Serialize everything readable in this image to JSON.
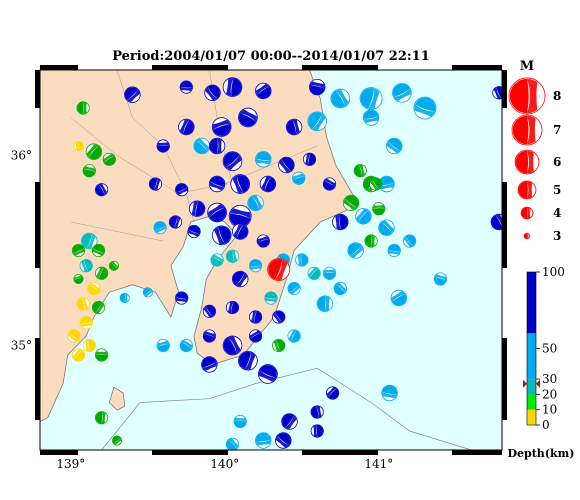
{
  "title": "Period:2004/01/07 00:00--2014/01/07 22:11",
  "map": {
    "lon_range": [
      138.8,
      141.8
    ],
    "lat_range": [
      34.45,
      36.45
    ],
    "x_ticks": [
      {
        "value": 139,
        "label": "139°"
      },
      {
        "value": 140,
        "label": "140°"
      },
      {
        "value": 141,
        "label": "141°"
      }
    ],
    "y_ticks": [
      {
        "value": 36,
        "label": "36°"
      },
      {
        "value": 35,
        "label": "35°"
      }
    ],
    "colors": {
      "land": "#fbdcbe",
      "sea": "#e0ffff",
      "coast": "#7a7a7a"
    }
  },
  "magnitude_legend": {
    "title": "M",
    "items": [
      {
        "label": "8",
        "m": 8
      },
      {
        "label": "7",
        "m": 7
      },
      {
        "label": "6",
        "m": 6
      },
      {
        "label": "5",
        "m": 5
      },
      {
        "label": "4",
        "m": 4
      },
      {
        "label": "3",
        "m": 3
      }
    ],
    "color": "#ff0000"
  },
  "depth_scale": {
    "title": "Depth(km)",
    "range": [
      0,
      100
    ],
    "ticks": [
      {
        "label": "100",
        "v": 100
      },
      {
        "label": "50",
        "v": 50
      },
      {
        "label": "30",
        "v": 30
      },
      {
        "label": "20",
        "v": 20
      },
      {
        "label": "10",
        "v": 10
      },
      {
        "label": "0",
        "v": 0
      }
    ],
    "bands": [
      {
        "from": 0,
        "to": 10,
        "color": "#ffd700"
      },
      {
        "from": 10,
        "to": 20,
        "color": "#00ee00"
      },
      {
        "from": 20,
        "to": 30,
        "color": "#00bbbb"
      },
      {
        "from": 30,
        "to": 60,
        "color": "#00aaee"
      },
      {
        "from": 60,
        "to": 100,
        "color": "#0000cc"
      }
    ],
    "marker_depth": 27,
    "marker_color": "#cc0000"
  },
  "highlight_event": {
    "lon": 140.35,
    "lat": 35.4,
    "m": 5.5,
    "color": "#ff0000"
  },
  "events": [
    {
      "lon": 139.08,
      "lat": 36.25,
      "m": 4.0,
      "color": "#00aa00"
    },
    {
      "lon": 139.4,
      "lat": 36.32,
      "m": 4.5,
      "color": "#0000cc"
    },
    {
      "lon": 139.75,
      "lat": 36.36,
      "m": 4.0,
      "color": "#0000cc"
    },
    {
      "lon": 139.92,
      "lat": 36.33,
      "m": 4.5,
      "color": "#0000cc"
    },
    {
      "lon": 140.05,
      "lat": 36.36,
      "m": 5.0,
      "color": "#0000cc"
    },
    {
      "lon": 140.25,
      "lat": 36.34,
      "m": 4.5,
      "color": "#0000cc"
    },
    {
      "lon": 140.6,
      "lat": 36.36,
      "m": 4.5,
      "color": "#0000cc"
    },
    {
      "lon": 140.75,
      "lat": 36.3,
      "m": 5.0,
      "color": "#00aaee"
    },
    {
      "lon": 140.95,
      "lat": 36.3,
      "m": 5.5,
      "color": "#00aaee"
    },
    {
      "lon": 141.15,
      "lat": 36.33,
      "m": 5.0,
      "color": "#00aaee"
    },
    {
      "lon": 141.3,
      "lat": 36.25,
      "m": 5.5,
      "color": "#00aaee"
    },
    {
      "lon": 141.78,
      "lat": 36.33,
      "m": 4.0,
      "color": "#0000cc"
    },
    {
      "lon": 139.75,
      "lat": 36.15,
      "m": 4.5,
      "color": "#0000cc"
    },
    {
      "lon": 139.98,
      "lat": 36.15,
      "m": 5.0,
      "color": "#0000cc"
    },
    {
      "lon": 140.15,
      "lat": 36.2,
      "m": 5.0,
      "color": "#0000cc"
    },
    {
      "lon": 140.45,
      "lat": 36.15,
      "m": 4.5,
      "color": "#0000cc"
    },
    {
      "lon": 140.6,
      "lat": 36.18,
      "m": 5.0,
      "color": "#00aaee"
    },
    {
      "lon": 140.95,
      "lat": 36.2,
      "m": 4.5,
      "color": "#00aaee"
    },
    {
      "lon": 141.1,
      "lat": 36.05,
      "m": 4.5,
      "color": "#00aaee"
    },
    {
      "lon": 139.05,
      "lat": 36.05,
      "m": 3.5,
      "color": "#ffd700"
    },
    {
      "lon": 139.15,
      "lat": 36.02,
      "m": 4.5,
      "color": "#00aa00"
    },
    {
      "lon": 139.6,
      "lat": 36.05,
      "m": 4.0,
      "color": "#0000cc"
    },
    {
      "lon": 139.85,
      "lat": 36.05,
      "m": 4.5,
      "color": "#00aaee"
    },
    {
      "lon": 139.95,
      "lat": 36.05,
      "m": 4.5,
      "color": "#0000cc"
    },
    {
      "lon": 140.05,
      "lat": 35.97,
      "m": 5.0,
      "color": "#0000cc"
    },
    {
      "lon": 140.25,
      "lat": 35.98,
      "m": 4.5,
      "color": "#00aaee"
    },
    {
      "lon": 140.4,
      "lat": 35.95,
      "m": 4.5,
      "color": "#0000cc"
    },
    {
      "lon": 140.55,
      "lat": 35.98,
      "m": 4.0,
      "color": "#0000cc"
    },
    {
      "lon": 139.25,
      "lat": 35.98,
      "m": 4.0,
      "color": "#00aa00"
    },
    {
      "lon": 139.12,
      "lat": 35.92,
      "m": 4.0,
      "color": "#00aa00"
    },
    {
      "lon": 139.2,
      "lat": 35.82,
      "m": 4.0,
      "color": "#0000cc"
    },
    {
      "lon": 139.55,
      "lat": 35.85,
      "m": 4.0,
      "color": "#0000cc"
    },
    {
      "lon": 139.72,
      "lat": 35.82,
      "m": 4.0,
      "color": "#0000cc"
    },
    {
      "lon": 139.95,
      "lat": 35.85,
      "m": 4.5,
      "color": "#0000cc"
    },
    {
      "lon": 140.1,
      "lat": 35.85,
      "m": 5.0,
      "color": "#0000cc"
    },
    {
      "lon": 140.28,
      "lat": 35.85,
      "m": 4.5,
      "color": "#0000cc"
    },
    {
      "lon": 140.48,
      "lat": 35.88,
      "m": 4.0,
      "color": "#00aaee"
    },
    {
      "lon": 140.68,
      "lat": 35.85,
      "m": 4.0,
      "color": "#0000cc"
    },
    {
      "lon": 140.88,
      "lat": 35.92,
      "m": 4.0,
      "color": "#00aa00"
    },
    {
      "lon": 140.95,
      "lat": 35.85,
      "m": 4.5,
      "color": "#00aa00"
    },
    {
      "lon": 141.05,
      "lat": 35.85,
      "m": 4.5,
      "color": "#00aaee"
    },
    {
      "lon": 140.82,
      "lat": 35.75,
      "m": 4.5,
      "color": "#00aa00"
    },
    {
      "lon": 140.75,
      "lat": 35.65,
      "m": 4.5,
      "color": "#0000cc"
    },
    {
      "lon": 140.9,
      "lat": 35.68,
      "m": 4.5,
      "color": "#00aaee"
    },
    {
      "lon": 141.0,
      "lat": 35.72,
      "m": 4.0,
      "color": "#00aa00"
    },
    {
      "lon": 141.05,
      "lat": 35.62,
      "m": 4.5,
      "color": "#00aaee"
    },
    {
      "lon": 140.95,
      "lat": 35.55,
      "m": 4.0,
      "color": "#00aa00"
    },
    {
      "lon": 140.85,
      "lat": 35.5,
      "m": 4.5,
      "color": "#00aaee"
    },
    {
      "lon": 141.1,
      "lat": 35.5,
      "m": 4.0,
      "color": "#00aaee"
    },
    {
      "lon": 141.2,
      "lat": 35.55,
      "m": 4.0,
      "color": "#00aaee"
    },
    {
      "lon": 139.82,
      "lat": 35.72,
      "m": 4.5,
      "color": "#0000cc"
    },
    {
      "lon": 139.95,
      "lat": 35.7,
      "m": 5.0,
      "color": "#0000cc"
    },
    {
      "lon": 140.1,
      "lat": 35.68,
      "m": 5.5,
      "color": "#0000cc"
    },
    {
      "lon": 140.2,
      "lat": 35.75,
      "m": 4.5,
      "color": "#00aaee"
    },
    {
      "lon": 139.68,
      "lat": 35.65,
      "m": 4.0,
      "color": "#0000cc"
    },
    {
      "lon": 139.58,
      "lat": 35.62,
      "m": 4.0,
      "color": "#00aaee"
    },
    {
      "lon": 139.8,
      "lat": 35.6,
      "m": 4.0,
      "color": "#0000cc"
    },
    {
      "lon": 139.98,
      "lat": 35.58,
      "m": 5.0,
      "color": "#0000cc"
    },
    {
      "lon": 140.1,
      "lat": 35.6,
      "m": 4.5,
      "color": "#0000cc"
    },
    {
      "lon": 140.25,
      "lat": 35.55,
      "m": 4.0,
      "color": "#0000cc"
    },
    {
      "lon": 139.95,
      "lat": 35.45,
      "m": 4.0,
      "color": "#00bbbb"
    },
    {
      "lon": 140.05,
      "lat": 35.47,
      "m": 4.0,
      "color": "#00bbbb"
    },
    {
      "lon": 140.1,
      "lat": 35.35,
      "m": 4.5,
      "color": "#0000cc"
    },
    {
      "lon": 140.2,
      "lat": 35.42,
      "m": 4.0,
      "color": "#00aaee"
    },
    {
      "lon": 140.38,
      "lat": 35.45,
      "m": 4.0,
      "color": "#00aaee"
    },
    {
      "lon": 140.5,
      "lat": 35.45,
      "m": 4.0,
      "color": "#00aaee"
    },
    {
      "lon": 140.58,
      "lat": 35.38,
      "m": 4.0,
      "color": "#00bbbb"
    },
    {
      "lon": 140.68,
      "lat": 35.38,
      "m": 4.0,
      "color": "#00aaee"
    },
    {
      "lon": 140.75,
      "lat": 35.3,
      "m": 4.0,
      "color": "#00aaee"
    },
    {
      "lon": 140.65,
      "lat": 35.22,
      "m": 4.5,
      "color": "#00aaee"
    },
    {
      "lon": 140.45,
      "lat": 35.3,
      "m": 4.0,
      "color": "#00aaee"
    },
    {
      "lon": 140.3,
      "lat": 35.25,
      "m": 4.0,
      "color": "#00bbbb"
    },
    {
      "lon": 140.35,
      "lat": 35.15,
      "m": 4.0,
      "color": "#0000cc"
    },
    {
      "lon": 140.2,
      "lat": 35.15,
      "m": 4.0,
      "color": "#0000cc"
    },
    {
      "lon": 141.13,
      "lat": 35.25,
      "m": 4.5,
      "color": "#00aaee"
    },
    {
      "lon": 141.4,
      "lat": 35.35,
      "m": 4.0,
      "color": "#00aaee"
    },
    {
      "lon": 141.78,
      "lat": 35.65,
      "m": 4.5,
      "color": "#0000cc"
    },
    {
      "lon": 139.12,
      "lat": 35.55,
      "m": 4.5,
      "color": "#00bbbb"
    },
    {
      "lon": 139.05,
      "lat": 35.5,
      "m": 4.0,
      "color": "#00aa00"
    },
    {
      "lon": 139.18,
      "lat": 35.5,
      "m": 4.0,
      "color": "#00aa00"
    },
    {
      "lon": 139.1,
      "lat": 35.42,
      "m": 4.0,
      "color": "#00bbbb"
    },
    {
      "lon": 139.2,
      "lat": 35.38,
      "m": 4.0,
      "color": "#00aa00"
    },
    {
      "lon": 139.05,
      "lat": 35.35,
      "m": 3.5,
      "color": "#00aa00"
    },
    {
      "lon": 139.15,
      "lat": 35.3,
      "m": 4.0,
      "color": "#ffd700"
    },
    {
      "lon": 139.08,
      "lat": 35.22,
      "m": 4.0,
      "color": "#ffd700"
    },
    {
      "lon": 139.18,
      "lat": 35.2,
      "m": 4.0,
      "color": "#00aa00"
    },
    {
      "lon": 139.1,
      "lat": 35.12,
      "m": 4.0,
      "color": "#ffd700"
    },
    {
      "lon": 139.02,
      "lat": 35.05,
      "m": 4.0,
      "color": "#ffd700"
    },
    {
      "lon": 139.12,
      "lat": 35.0,
      "m": 4.0,
      "color": "#ffd700"
    },
    {
      "lon": 139.05,
      "lat": 34.95,
      "m": 4.0,
      "color": "#ffd700"
    },
    {
      "lon": 139.2,
      "lat": 34.95,
      "m": 4.0,
      "color": "#00aa00"
    },
    {
      "lon": 139.28,
      "lat": 35.42,
      "m": 3.5,
      "color": "#00aa00"
    },
    {
      "lon": 139.35,
      "lat": 35.25,
      "m": 3.5,
      "color": "#00aaee"
    },
    {
      "lon": 139.5,
      "lat": 35.28,
      "m": 3.5,
      "color": "#00aaee"
    },
    {
      "lon": 139.72,
      "lat": 35.25,
      "m": 4.0,
      "color": "#0000cc"
    },
    {
      "lon": 139.9,
      "lat": 35.18,
      "m": 4.0,
      "color": "#0000cc"
    },
    {
      "lon": 140.05,
      "lat": 35.2,
      "m": 4.0,
      "color": "#0000cc"
    },
    {
      "lon": 140.2,
      "lat": 35.05,
      "m": 4.0,
      "color": "#0000cc"
    },
    {
      "lon": 139.9,
      "lat": 35.05,
      "m": 4.0,
      "color": "#0000cc"
    },
    {
      "lon": 140.05,
      "lat": 35.0,
      "m": 5.0,
      "color": "#0000cc"
    },
    {
      "lon": 140.15,
      "lat": 34.92,
      "m": 5.0,
      "color": "#0000cc"
    },
    {
      "lon": 139.9,
      "lat": 34.9,
      "m": 4.5,
      "color": "#0000cc"
    },
    {
      "lon": 140.28,
      "lat": 34.85,
      "m": 5.0,
      "color": "#0000cc"
    },
    {
      "lon": 140.35,
      "lat": 35.0,
      "m": 4.0,
      "color": "#00aa00"
    },
    {
      "lon": 140.45,
      "lat": 35.05,
      "m": 4.0,
      "color": "#00aaee"
    },
    {
      "lon": 139.6,
      "lat": 35.0,
      "m": 4.0,
      "color": "#00aaee"
    },
    {
      "lon": 139.75,
      "lat": 35.0,
      "m": 4.0,
      "color": "#00aaee"
    },
    {
      "lon": 140.6,
      "lat": 34.65,
      "m": 4.0,
      "color": "#0000cc"
    },
    {
      "lon": 140.42,
      "lat": 34.6,
      "m": 4.5,
      "color": "#0000cc"
    },
    {
      "lon": 140.25,
      "lat": 34.5,
      "m": 4.5,
      "color": "#00aaee"
    },
    {
      "lon": 140.38,
      "lat": 34.5,
      "m": 4.5,
      "color": "#0000cc"
    },
    {
      "lon": 140.6,
      "lat": 34.55,
      "m": 4.0,
      "color": "#0000cc"
    },
    {
      "lon": 140.7,
      "lat": 34.75,
      "m": 4.0,
      "color": "#0000cc"
    },
    {
      "lon": 140.1,
      "lat": 34.6,
      "m": 4.0,
      "color": "#00aaee"
    },
    {
      "lon": 140.05,
      "lat": 34.48,
      "m": 4.0,
      "color": "#00aaee"
    },
    {
      "lon": 139.2,
      "lat": 34.62,
      "m": 4.0,
      "color": "#00aa00"
    },
    {
      "lon": 139.3,
      "lat": 34.5,
      "m": 3.5,
      "color": "#00aa00"
    },
    {
      "lon": 141.07,
      "lat": 34.75,
      "m": 4.5,
      "color": "#00aaee"
    },
    {
      "lon": 140.98,
      "lat": 35.85,
      "m": 4.0,
      "color": "#00aa00"
    }
  ]
}
